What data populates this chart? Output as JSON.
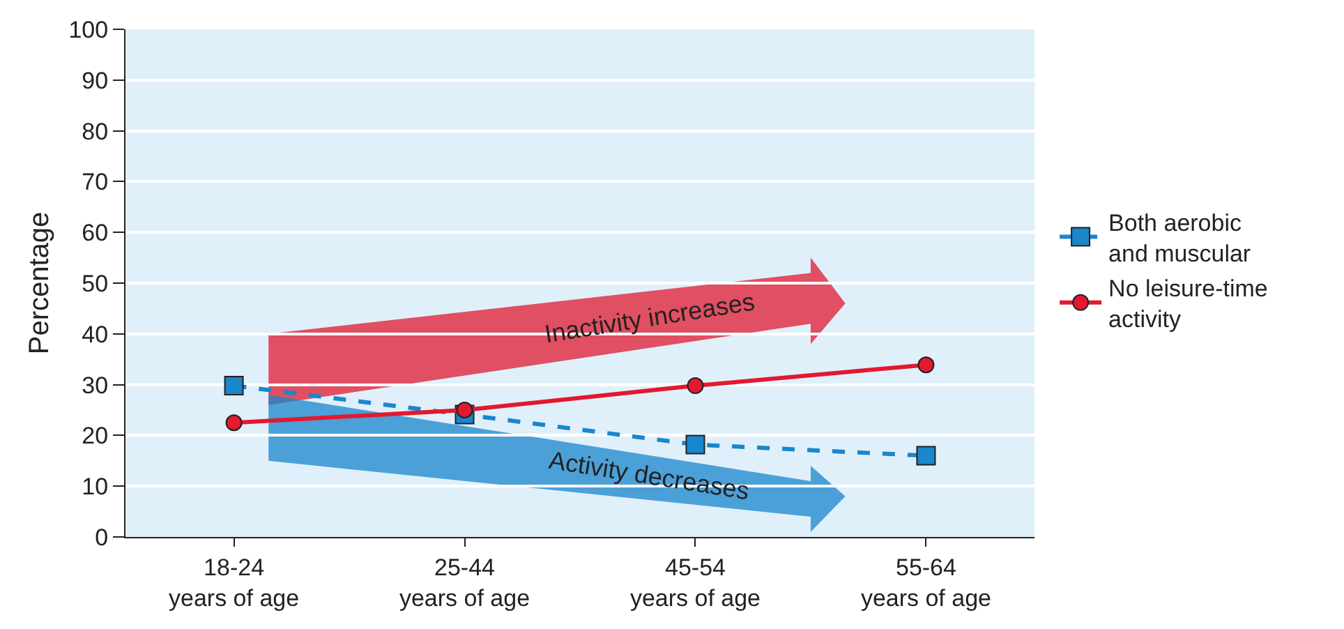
{
  "chart_data": {
    "type": "line",
    "ylabel": "Percentage",
    "categories": [
      "18-24\nyears of age",
      "25-44\nyears of age",
      "45-54\nyears of age",
      "55-64\nyears of age"
    ],
    "series": [
      {
        "name": "Both aerobic\nand muscular",
        "color": "#1a86cc",
        "values": [
          29.8,
          24.1,
          18.2,
          16.0
        ],
        "marker": "square",
        "line_style": "dashed"
      },
      {
        "name": "No leisure-time\nactivity",
        "color": "#e2192f",
        "values": [
          22.5,
          25.0,
          29.8,
          33.9
        ],
        "marker": "circle",
        "line_style": "solid"
      }
    ],
    "annotations": [
      "Inactivity increases",
      "Activity decreases"
    ],
    "ylim": [
      0,
      100
    ],
    "yticks": [
      0,
      10,
      20,
      30,
      40,
      50,
      60,
      70,
      80,
      90,
      100
    ],
    "grid": "y",
    "legend": "right"
  }
}
